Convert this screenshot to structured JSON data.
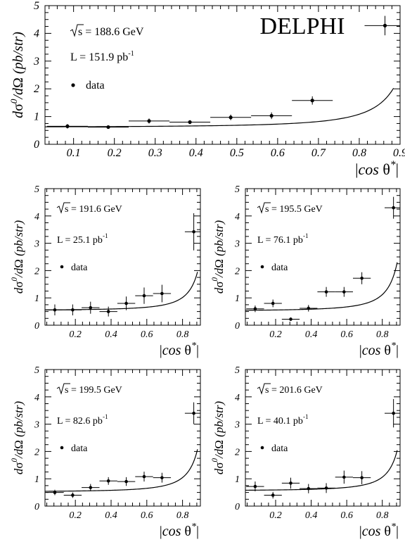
{
  "figure": {
    "experiment_label": "DELPHI",
    "legend_label": "data",
    "ylabel_parts": {
      "d": "d",
      "sigma": "σ",
      "sup": "0",
      "slash": "/d",
      "omega": "Ω",
      "unit": "(pb/str)"
    },
    "xlabel_parts": {
      "bar_l": "|",
      "cos": "cos",
      "theta": "θ",
      "star": "*",
      "bar_r": "|"
    },
    "sqrt_s_prefix": "s = ",
    "lumi_prefix": "L = ",
    "lumi_unit": "pb",
    "lumi_exp": "-1"
  },
  "chart_data": [
    {
      "type": "scatter",
      "sqrt_s": "188.6 GeV",
      "luminosity": "151.9",
      "xlim": [
        0.03,
        0.9
      ],
      "ylim": [
        0,
        5
      ],
      "xticks": [
        "0.1",
        "0.2",
        "0.3",
        "0.4",
        "0.5",
        "0.6",
        "0.7",
        "0.8",
        "0.9"
      ],
      "yticks": [
        "0",
        "1",
        "2",
        "3",
        "4",
        "5"
      ],
      "points": [
        {
          "x": 0.085,
          "y": 0.65,
          "xerr": 0.05,
          "yerr": 0.08
        },
        {
          "x": 0.185,
          "y": 0.62,
          "xerr": 0.05,
          "yerr": 0.06
        },
        {
          "x": 0.285,
          "y": 0.84,
          "xerr": 0.05,
          "yerr": 0.09
        },
        {
          "x": 0.385,
          "y": 0.8,
          "xerr": 0.05,
          "yerr": 0.07
        },
        {
          "x": 0.485,
          "y": 0.97,
          "xerr": 0.05,
          "yerr": 0.1
        },
        {
          "x": 0.585,
          "y": 1.03,
          "xerr": 0.05,
          "yerr": 0.12
        },
        {
          "x": 0.685,
          "y": 1.58,
          "xerr": 0.05,
          "yerr": 0.15
        },
        {
          "x": 0.863,
          "y": 4.28,
          "xerr": 0.05,
          "yerr": 0.35
        }
      ],
      "curve": {
        "a": 0.61,
        "b": 0.019,
        "xmax": 0.884
      }
    },
    {
      "type": "scatter",
      "sqrt_s": "191.6 GeV",
      "luminosity": "25.1",
      "xlim": [
        0.03,
        0.9
      ],
      "ylim": [
        0,
        5
      ],
      "xticks": [
        "0.2",
        "0.4",
        "0.6",
        "0.8"
      ],
      "yticks": [
        "0",
        "1",
        "2",
        "3",
        "4",
        "5"
      ],
      "points": [
        {
          "x": 0.085,
          "y": 0.56,
          "xerr": 0.05,
          "yerr": 0.2
        },
        {
          "x": 0.185,
          "y": 0.56,
          "xerr": 0.05,
          "yerr": 0.2
        },
        {
          "x": 0.285,
          "y": 0.64,
          "xerr": 0.05,
          "yerr": 0.22
        },
        {
          "x": 0.385,
          "y": 0.5,
          "xerr": 0.05,
          "yerr": 0.18
        },
        {
          "x": 0.485,
          "y": 0.8,
          "xerr": 0.05,
          "yerr": 0.25
        },
        {
          "x": 0.585,
          "y": 1.08,
          "xerr": 0.05,
          "yerr": 0.3
        },
        {
          "x": 0.685,
          "y": 1.16,
          "xerr": 0.05,
          "yerr": 0.32
        },
        {
          "x": 0.863,
          "y": 3.42,
          "xerr": 0.05,
          "yerr": 0.68
        }
      ],
      "curve": {
        "a": 0.54,
        "b": 0.019,
        "xmax": 0.884
      }
    },
    {
      "type": "scatter",
      "sqrt_s": "195.5 GeV",
      "luminosity": "76.1",
      "xlim": [
        0.03,
        0.9
      ],
      "ylim": [
        0,
        5
      ],
      "xticks": [
        "0.2",
        "0.4",
        "0.6",
        "0.8"
      ],
      "yticks": [
        "0",
        "1",
        "2",
        "3",
        "4",
        "5"
      ],
      "points": [
        {
          "x": 0.085,
          "y": 0.6,
          "xerr": 0.05,
          "yerr": 0.12
        },
        {
          "x": 0.185,
          "y": 0.8,
          "xerr": 0.05,
          "yerr": 0.14
        },
        {
          "x": 0.285,
          "y": 0.22,
          "xerr": 0.05,
          "yerr": 0.06
        },
        {
          "x": 0.385,
          "y": 0.62,
          "xerr": 0.05,
          "yerr": 0.12
        },
        {
          "x": 0.485,
          "y": 1.22,
          "xerr": 0.05,
          "yerr": 0.18
        },
        {
          "x": 0.585,
          "y": 1.22,
          "xerr": 0.05,
          "yerr": 0.18
        },
        {
          "x": 0.685,
          "y": 1.72,
          "xerr": 0.05,
          "yerr": 0.22
        },
        {
          "x": 0.863,
          "y": 4.3,
          "xerr": 0.05,
          "yerr": 0.4
        }
      ],
      "curve": {
        "a": 0.52,
        "b": 0.024,
        "xmax": 0.884
      }
    },
    {
      "type": "scatter",
      "sqrt_s": "199.5 GeV",
      "luminosity": "82.6",
      "xlim": [
        0.03,
        0.9
      ],
      "ylim": [
        0,
        5
      ],
      "xticks": [
        "0.2",
        "0.4",
        "0.6",
        "0.8"
      ],
      "yticks": [
        "0",
        "1",
        "2",
        "3",
        "4",
        "5"
      ],
      "points": [
        {
          "x": 0.085,
          "y": 0.5,
          "xerr": 0.05,
          "yerr": 0.1
        },
        {
          "x": 0.185,
          "y": 0.4,
          "xerr": 0.05,
          "yerr": 0.1
        },
        {
          "x": 0.285,
          "y": 0.68,
          "xerr": 0.05,
          "yerr": 0.13
        },
        {
          "x": 0.385,
          "y": 0.92,
          "xerr": 0.05,
          "yerr": 0.14
        },
        {
          "x": 0.485,
          "y": 0.9,
          "xerr": 0.05,
          "yerr": 0.16
        },
        {
          "x": 0.585,
          "y": 1.08,
          "xerr": 0.05,
          "yerr": 0.18
        },
        {
          "x": 0.685,
          "y": 1.04,
          "xerr": 0.05,
          "yerr": 0.18
        },
        {
          "x": 0.863,
          "y": 3.4,
          "xerr": 0.05,
          "yerr": 0.4
        }
      ],
      "curve": {
        "a": 0.52,
        "b": 0.021,
        "xmax": 0.884
      }
    },
    {
      "type": "scatter",
      "sqrt_s": "201.6 GeV",
      "luminosity": "40.1",
      "xlim": [
        0.03,
        0.9
      ],
      "ylim": [
        0,
        5
      ],
      "xticks": [
        "0.2",
        "0.4",
        "0.6",
        "0.8"
      ],
      "yticks": [
        "0",
        "1",
        "2",
        "3",
        "4",
        "5"
      ],
      "points": [
        {
          "x": 0.085,
          "y": 0.72,
          "xerr": 0.05,
          "yerr": 0.18
        },
        {
          "x": 0.185,
          "y": 0.4,
          "xerr": 0.05,
          "yerr": 0.12
        },
        {
          "x": 0.285,
          "y": 0.84,
          "xerr": 0.05,
          "yerr": 0.2
        },
        {
          "x": 0.385,
          "y": 0.64,
          "xerr": 0.05,
          "yerr": 0.17
        },
        {
          "x": 0.485,
          "y": 0.66,
          "xerr": 0.05,
          "yerr": 0.18
        },
        {
          "x": 0.585,
          "y": 1.06,
          "xerr": 0.05,
          "yerr": 0.24
        },
        {
          "x": 0.685,
          "y": 1.04,
          "xerr": 0.05,
          "yerr": 0.24
        },
        {
          "x": 0.863,
          "y": 3.4,
          "xerr": 0.05,
          "yerr": 0.52
        }
      ],
      "curve": {
        "a": 0.56,
        "b": 0.02,
        "xmax": 0.884
      }
    }
  ]
}
